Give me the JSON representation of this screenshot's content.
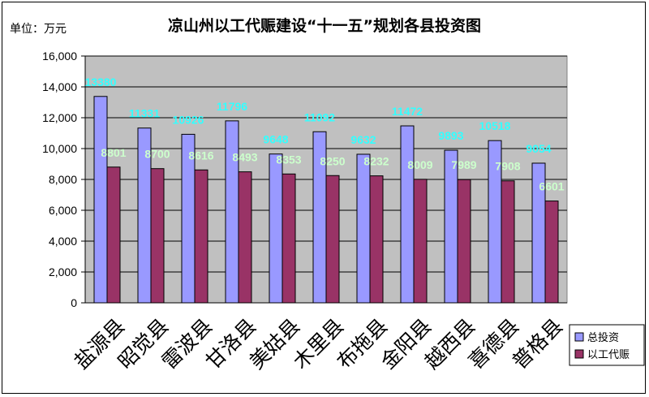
{
  "chart_data": {
    "type": "bar",
    "title": "凉山州以工代赈建设“十一五”规划各县投资图",
    "unit_label": "单位：万元",
    "categories": [
      "盐源县",
      "昭觉县",
      "雷波县",
      "甘洛县",
      "美姑县",
      "木里县",
      "布拖县",
      "金阳县",
      "越西县",
      "喜德县",
      "普格县"
    ],
    "series": [
      {
        "name": "总投资",
        "values": [
          13380,
          11331,
          10926,
          11796,
          9648,
          11092,
          9632,
          11472,
          9893,
          10518,
          9054
        ],
        "color": "#9999ff"
      },
      {
        "name": "以工代赈",
        "values": [
          8801,
          8700,
          8616,
          8493,
          8353,
          8250,
          8232,
          8009,
          7989,
          7908,
          6601
        ],
        "color": "#993366"
      }
    ],
    "y_ticks": [
      "0",
      "2,000",
      "4,000",
      "6,000",
      "8,000",
      "10,000",
      "12,000",
      "14,000",
      "16,000"
    ],
    "ylim": [
      0,
      16000
    ],
    "grid": true,
    "legend_position": "right",
    "plot_background": "#c0c0c0",
    "data_label_colors": {
      "total": "#33ffff",
      "work": "#ccffcc"
    }
  }
}
